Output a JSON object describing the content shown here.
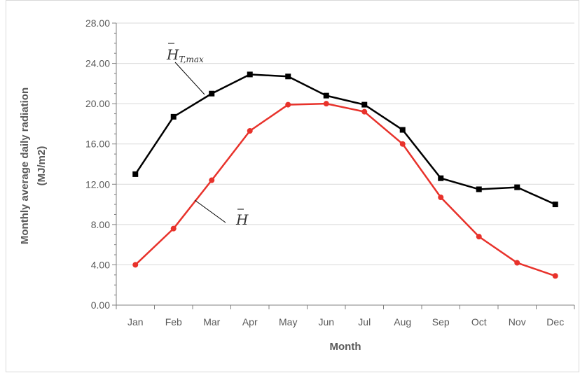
{
  "chart_data": {
    "type": "line",
    "title": "",
    "xlabel": "Month",
    "ylabel": "Monthly average daily radiation",
    "ylabel_unit": "(MJ/m2)",
    "ylim": [
      0,
      28
    ],
    "yticks": [
      "0.00",
      "4.00",
      "8.00",
      "12.00",
      "16.00",
      "20.00",
      "24.00",
      "28.00"
    ],
    "categories": [
      "Jan",
      "Feb",
      "Mar",
      "Apr",
      "May",
      "Jun",
      "Jul",
      "Aug",
      "Sep",
      "Oct",
      "Nov",
      "Dec"
    ],
    "grid": "horizontal",
    "series": [
      {
        "id": "ht_max",
        "name": "H̄T,max",
        "color": "#000000",
        "marker": "square",
        "values": [
          13.0,
          18.7,
          21.0,
          22.9,
          22.7,
          20.8,
          19.9,
          17.4,
          12.6,
          11.5,
          11.7,
          10.0
        ]
      },
      {
        "id": "h_bar",
        "name": "H̄",
        "color": "#e8322b",
        "marker": "circle",
        "values": [
          4.0,
          7.6,
          12.4,
          17.3,
          19.9,
          20.0,
          19.2,
          16.0,
          10.7,
          6.8,
          4.2,
          2.9
        ]
      }
    ],
    "annotations": [
      {
        "series": "ht_max",
        "main": "H",
        "sub": "T,max"
      },
      {
        "series": "h_bar",
        "main": "H"
      }
    ]
  }
}
